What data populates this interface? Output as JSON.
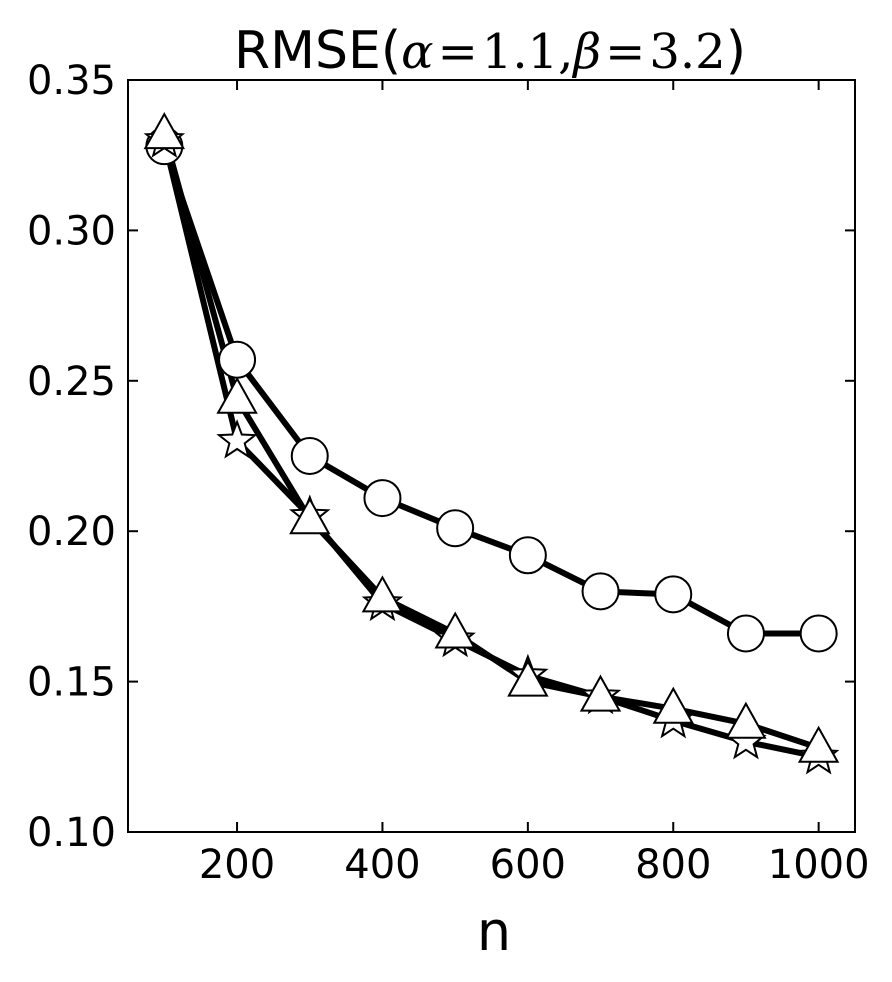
{
  "chart_data": {
    "type": "line",
    "title": "RMSE(α = 1.1, β = 3.2)",
    "title_parts": {
      "prefix": "RMSE(",
      "alpha_symbol": "α",
      "eq1": "=",
      "alpha_value": "1.1,",
      "beta_symbol": "β",
      "eq2": "=",
      "beta_value": "3.2",
      "suffix": ")"
    },
    "xlabel": "n",
    "ylabel": "",
    "xlim": [
      50,
      1050
    ],
    "ylim": [
      0.1,
      0.35
    ],
    "x_ticks": [
      200,
      400,
      600,
      800,
      1000
    ],
    "x_tick_labels": [
      "200",
      "400",
      "600",
      "800",
      "1000"
    ],
    "y_ticks": [
      0.1,
      0.15,
      0.2,
      0.25,
      0.3,
      0.35
    ],
    "y_tick_labels": [
      "0.10",
      "0.15",
      "0.20",
      "0.25",
      "0.30",
      "0.35"
    ],
    "grid": false,
    "line_color": "#000000",
    "marker_fill": "#ffffff",
    "x": [
      100,
      200,
      300,
      400,
      500,
      600,
      700,
      800,
      900,
      1000
    ],
    "series": [
      {
        "marker": "circle",
        "values": [
          0.328,
          0.257,
          0.225,
          0.211,
          0.201,
          0.192,
          0.18,
          0.179,
          0.166,
          0.166
        ]
      },
      {
        "marker": "star",
        "values": [
          0.33,
          0.23,
          0.205,
          0.176,
          0.164,
          0.152,
          0.145,
          0.137,
          0.13,
          0.125
        ]
      },
      {
        "marker": "triangle",
        "values": [
          0.332,
          0.244,
          0.204,
          0.178,
          0.166,
          0.15,
          0.145,
          0.141,
          0.136,
          0.128
        ]
      }
    ]
  }
}
